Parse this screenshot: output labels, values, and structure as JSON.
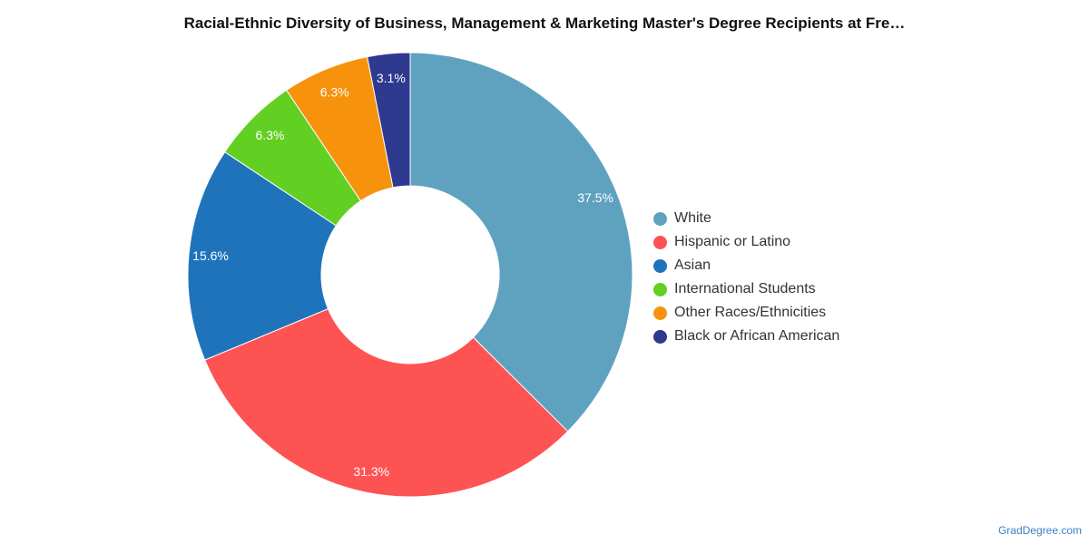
{
  "title": "Racial-Ethnic Diversity of Business, Management & Marketing Master's Degree Recipients at Fre…",
  "source": "GradDegree.com",
  "chart_data": {
    "type": "pie",
    "variant": "donut",
    "title": "Racial-Ethnic Diversity of Business, Management & Marketing Master's Degree Recipients at Fre…",
    "legend_position": "right",
    "slices": [
      {
        "label": "White",
        "value": 37.5,
        "display": "37.5%",
        "color": "#5fa2c0"
      },
      {
        "label": "Hispanic or Latino",
        "value": 31.3,
        "display": "31.3%",
        "color": "#fd5352"
      },
      {
        "label": "Asian",
        "value": 15.6,
        "display": "15.6%",
        "color": "#1f73bb"
      },
      {
        "label": "International Students",
        "value": 6.3,
        "display": "6.3%",
        "color": "#62cf23"
      },
      {
        "label": "Other Races/Ethnicities",
        "value": 6.3,
        "display": "6.3%",
        "color": "#f7920c"
      },
      {
        "label": "Black or African American",
        "value": 3.1,
        "display": "3.1%",
        "color": "#2e3990"
      }
    ]
  }
}
